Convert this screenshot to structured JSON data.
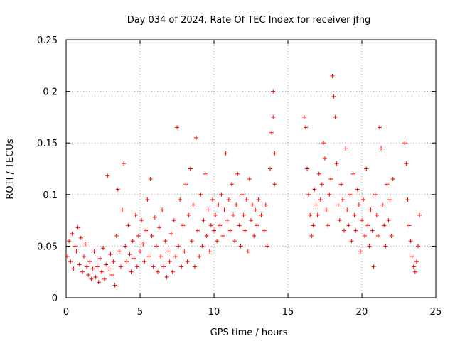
{
  "chart_data": {
    "type": "scatter",
    "title": "Day 034 of 2024, Rate Of TEC Index for receiver jfng",
    "xlabel": "GPS time / hours",
    "ylabel": "ROTI / TECUs",
    "xlim": [
      0,
      25
    ],
    "ylim": [
      0,
      0.25
    ],
    "xticks": [
      0,
      5,
      10,
      15,
      20,
      25
    ],
    "yticks": [
      0,
      0.05,
      0.1,
      0.15,
      0.2,
      0.25
    ],
    "ytick_labels": [
      "0",
      "0.05",
      "0.1",
      "0.15",
      "0.2",
      "0.25"
    ],
    "grid": true,
    "marker": "+",
    "color": "#ff0000",
    "series": [
      {
        "name": "ROTI",
        "points": [
          [
            0.1,
            0.04
          ],
          [
            0.2,
            0.055
          ],
          [
            0.3,
            0.035
          ],
          [
            0.4,
            0.062
          ],
          [
            0.5,
            0.028
          ],
          [
            0.6,
            0.05
          ],
          [
            0.7,
            0.045
          ],
          [
            0.8,
            0.068
          ],
          [
            0.9,
            0.032
          ],
          [
            1.0,
            0.058
          ],
          [
            1.1,
            0.025
          ],
          [
            1.2,
            0.04
          ],
          [
            1.3,
            0.052
          ],
          [
            1.4,
            0.03
          ],
          [
            1.5,
            0.022
          ],
          [
            1.6,
            0.035
          ],
          [
            1.7,
            0.018
          ],
          [
            1.8,
            0.028
          ],
          [
            1.9,
            0.045
          ],
          [
            2.0,
            0.02
          ],
          [
            2.1,
            0.03
          ],
          [
            2.2,
            0.015
          ],
          [
            2.3,
            0.038
          ],
          [
            2.4,
            0.025
          ],
          [
            2.5,
            0.048
          ],
          [
            2.6,
            0.018
          ],
          [
            2.7,
            0.032
          ],
          [
            2.8,
            0.118
          ],
          [
            2.9,
            0.028
          ],
          [
            3.0,
            0.042
          ],
          [
            3.1,
            0.022
          ],
          [
            3.2,
            0.035
          ],
          [
            3.3,
            0.012
          ],
          [
            3.4,
            0.06
          ],
          [
            3.5,
            0.105
          ],
          [
            3.6,
            0.045
          ],
          [
            3.7,
            0.03
          ],
          [
            3.8,
            0.085
          ],
          [
            3.9,
            0.13
          ],
          [
            4.0,
            0.05
          ],
          [
            4.1,
            0.035
          ],
          [
            4.2,
            0.07
          ],
          [
            4.3,
            0.042
          ],
          [
            4.4,
            0.025
          ],
          [
            4.5,
            0.055
          ],
          [
            4.6,
            0.038
          ],
          [
            4.7,
            0.08
          ],
          [
            4.8,
            0.03
          ],
          [
            4.9,
            0.06
          ],
          [
            5.0,
            0.045
          ],
          [
            5.1,
            0.075
          ],
          [
            5.2,
            0.052
          ],
          [
            5.3,
            0.035
          ],
          [
            5.4,
            0.065
          ],
          [
            5.5,
            0.095
          ],
          [
            5.6,
            0.04
          ],
          [
            5.7,
            0.115
          ],
          [
            5.8,
            0.06
          ],
          [
            5.9,
            0.03
          ],
          [
            6.0,
            0.078
          ],
          [
            6.1,
            0.05
          ],
          [
            6.2,
            0.025
          ],
          [
            6.3,
            0.068
          ],
          [
            6.4,
            0.04
          ],
          [
            6.5,
            0.085
          ],
          [
            6.6,
            0.03
          ],
          [
            6.7,
            0.055
          ],
          [
            6.8,
            0.02
          ],
          [
            6.9,
            0.045
          ],
          [
            7.0,
            0.035
          ],
          [
            7.1,
            0.062
          ],
          [
            7.2,
            0.025
          ],
          [
            7.3,
            0.075
          ],
          [
            7.4,
            0.04
          ],
          [
            7.5,
            0.165
          ],
          [
            7.6,
            0.05
          ],
          [
            7.7,
            0.095
          ],
          [
            7.8,
            0.03
          ],
          [
            7.9,
            0.07
          ],
          [
            8.0,
            0.045
          ],
          [
            8.1,
            0.11
          ],
          [
            8.2,
            0.035
          ],
          [
            8.3,
            0.08
          ],
          [
            8.4,
            0.125
          ],
          [
            8.5,
            0.055
          ],
          [
            8.6,
            0.09
          ],
          [
            8.7,
            0.03
          ],
          [
            8.8,
            0.155
          ],
          [
            8.9,
            0.065
          ],
          [
            9.0,
            0.04
          ],
          [
            9.1,
            0.1
          ],
          [
            9.2,
            0.05
          ],
          [
            9.3,
            0.075
          ],
          [
            9.4,
            0.12
          ],
          [
            9.5,
            0.06
          ],
          [
            9.6,
            0.085
          ],
          [
            9.7,
            0.045
          ],
          [
            9.8,
            0.07
          ],
          [
            9.9,
            0.095
          ],
          [
            10.0,
            0.065
          ],
          [
            10.1,
            0.08
          ],
          [
            10.2,
            0.055
          ],
          [
            10.3,
            0.09
          ],
          [
            10.4,
            0.07
          ],
          [
            10.5,
            0.1
          ],
          [
            10.6,
            0.06
          ],
          [
            10.7,
            0.085
          ],
          [
            10.8,
            0.14
          ],
          [
            10.9,
            0.075
          ],
          [
            11.0,
            0.095
          ],
          [
            11.1,
            0.065
          ],
          [
            11.2,
            0.11
          ],
          [
            11.3,
            0.08
          ],
          [
            11.4,
            0.055
          ],
          [
            11.5,
            0.09
          ],
          [
            11.6,
            0.12
          ],
          [
            11.7,
            0.07
          ],
          [
            11.8,
            0.05
          ],
          [
            11.9,
            0.1
          ],
          [
            12.0,
            0.08
          ],
          [
            12.1,
            0.065
          ],
          [
            12.2,
            0.095
          ],
          [
            12.3,
            0.045
          ],
          [
            12.4,
            0.115
          ],
          [
            12.5,
            0.075
          ],
          [
            12.6,
            0.09
          ],
          [
            12.7,
            0.06
          ],
          [
            12.8,
            0.085
          ],
          [
            12.9,
            0.07
          ],
          [
            13.0,
            0.095
          ],
          [
            13.2,
            0.08
          ],
          [
            13.4,
            0.065
          ],
          [
            13.5,
            0.09
          ],
          [
            13.6,
            0.05
          ],
          [
            13.8,
            0.125
          ],
          [
            13.9,
            0.16
          ],
          [
            14.0,
            0.2
          ],
          [
            14.0,
            0.175
          ],
          [
            14.1,
            0.14
          ],
          [
            14.1,
            0.11
          ],
          [
            16.1,
            0.175
          ],
          [
            16.2,
            0.165
          ],
          [
            16.3,
            0.125
          ],
          [
            16.4,
            0.1
          ],
          [
            16.5,
            0.08
          ],
          [
            16.6,
            0.06
          ],
          [
            16.7,
            0.07
          ],
          [
            16.8,
            0.105
          ],
          [
            16.9,
            0.09
          ],
          [
            17.0,
            0.08
          ],
          [
            17.1,
            0.12
          ],
          [
            17.2,
            0.095
          ],
          [
            17.3,
            0.11
          ],
          [
            17.4,
            0.15
          ],
          [
            17.5,
            0.135
          ],
          [
            17.6,
            0.085
          ],
          [
            17.7,
            0.07
          ],
          [
            17.8,
            0.1
          ],
          [
            17.9,
            0.115
          ],
          [
            18.0,
            0.215
          ],
          [
            18.1,
            0.195
          ],
          [
            18.2,
            0.175
          ],
          [
            18.3,
            0.13
          ],
          [
            18.4,
            0.09
          ],
          [
            18.5,
            0.075
          ],
          [
            18.6,
            0.11
          ],
          [
            18.7,
            0.095
          ],
          [
            18.8,
            0.065
          ],
          [
            18.9,
            0.145
          ],
          [
            19.0,
            0.085
          ],
          [
            19.1,
            0.07
          ],
          [
            19.2,
            0.1
          ],
          [
            19.3,
            0.055
          ],
          [
            19.4,
            0.12
          ],
          [
            19.5,
            0.08
          ],
          [
            19.6,
            0.065
          ],
          [
            19.7,
            0.105
          ],
          [
            19.8,
            0.09
          ],
          [
            19.9,
            0.045
          ],
          [
            20.0,
            0.075
          ],
          [
            20.1,
            0.095
          ],
          [
            20.2,
            0.06
          ],
          [
            20.3,
            0.125
          ],
          [
            20.4,
            0.07
          ],
          [
            20.5,
            0.05
          ],
          [
            20.6,
            0.085
          ],
          [
            20.7,
            0.065
          ],
          [
            20.8,
            0.03
          ],
          [
            20.9,
            0.1
          ],
          [
            21.0,
            0.08
          ],
          [
            21.1,
            0.06
          ],
          [
            21.2,
            0.165
          ],
          [
            21.3,
            0.145
          ],
          [
            21.4,
            0.09
          ],
          [
            21.5,
            0.07
          ],
          [
            21.6,
            0.05
          ],
          [
            21.7,
            0.11
          ],
          [
            21.8,
            0.075
          ],
          [
            21.9,
            0.095
          ],
          [
            22.0,
            0.06
          ],
          [
            22.1,
            0.115
          ],
          [
            22.9,
            0.15
          ],
          [
            23.0,
            0.13
          ],
          [
            23.1,
            0.095
          ],
          [
            23.2,
            0.07
          ],
          [
            23.3,
            0.055
          ],
          [
            23.4,
            0.04
          ],
          [
            23.5,
            0.03
          ],
          [
            23.6,
            0.025
          ],
          [
            23.7,
            0.035
          ],
          [
            23.8,
            0.05
          ],
          [
            23.9,
            0.08
          ]
        ]
      }
    ]
  }
}
